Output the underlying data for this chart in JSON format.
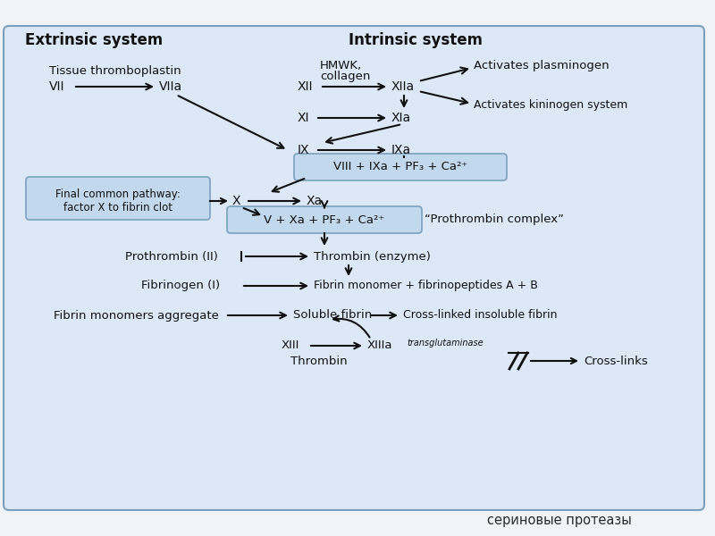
{
  "bg_color": "#dce8f5",
  "outer_bg": "#f0f4f8",
  "box_color": "#c2d8ed",
  "title_extrinsic": "Extrinsic system",
  "title_intrinsic": "Intrinsic system",
  "footer_text": "сериновые протеазы",
  "arrow_color": "#111111",
  "text_color": "#111111",
  "border_color": "#7aa0be"
}
